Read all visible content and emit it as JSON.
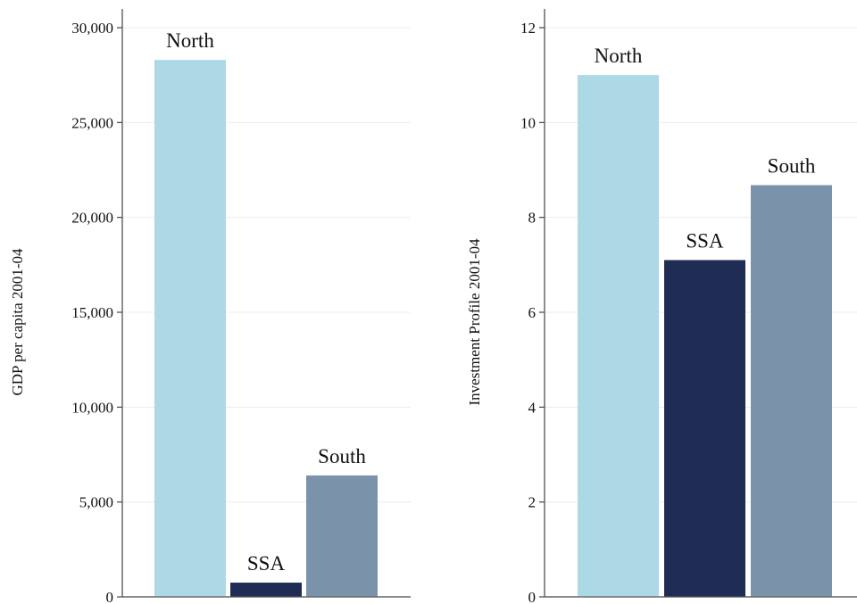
{
  "chart_data": [
    {
      "type": "bar",
      "categories": [
        "North",
        "SSA",
        "South"
      ],
      "values": [
        28300,
        750,
        6400
      ],
      "ylabel": "GDP per capita 2001-04",
      "ylim": [
        0,
        30000
      ],
      "yticks": [
        0,
        5000,
        10000,
        15000,
        20000,
        25000,
        30000
      ],
      "ytick_labels": [
        "0",
        "5,000",
        "10,000",
        "15,000",
        "20,000",
        "25,000",
        "30,000"
      ],
      "colors": [
        "#add8e6",
        "#1f2d54",
        "#7b93aa"
      ],
      "grid": true,
      "legend": "none"
    },
    {
      "type": "bar",
      "categories": [
        "North",
        "SSA",
        "South"
      ],
      "values": [
        11.0,
        7.1,
        8.68
      ],
      "ylabel": "Investment Profile 2001-04",
      "ylim": [
        0,
        12
      ],
      "yticks": [
        0,
        2,
        4,
        6,
        8,
        10,
        12
      ],
      "ytick_labels": [
        "0",
        "2",
        "4",
        "6",
        "8",
        "10",
        "12"
      ],
      "colors": [
        "#add8e6",
        "#1f2d54",
        "#7b93aa"
      ],
      "grid": true,
      "legend": "none"
    }
  ]
}
